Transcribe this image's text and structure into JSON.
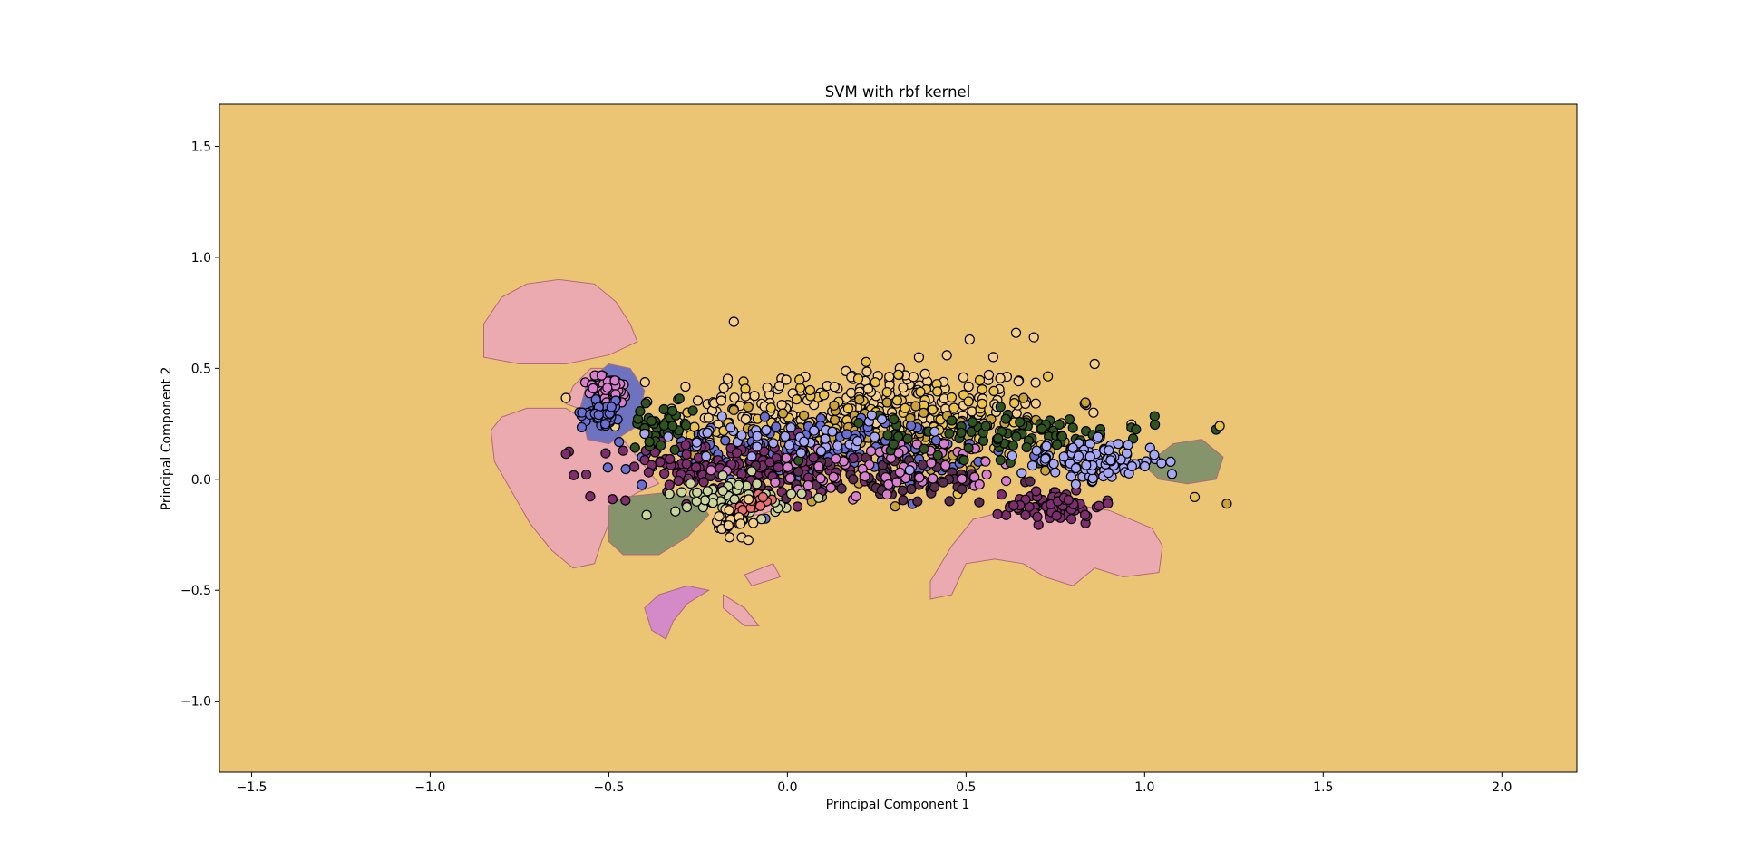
{
  "chart_data": {
    "type": "scatter",
    "title": "SVM with rbf kernel",
    "xlabel": "Principal Component 1",
    "ylabel": "Principal Component 2",
    "xlim": [
      -1.59,
      2.21
    ],
    "ylim": [
      -1.32,
      1.69
    ],
    "x_ticks": [
      -1.5,
      -1.0,
      -0.5,
      0.0,
      0.5,
      1.0,
      1.5,
      2.0
    ],
    "x_tick_labels": [
      "−1.5",
      "−1.0",
      "−0.5",
      "0.0",
      "0.5",
      "1.0",
      "1.5",
      "2.0"
    ],
    "y_ticks": [
      -1.0,
      -0.5,
      0.0,
      0.5,
      1.0,
      1.5
    ],
    "y_tick_labels": [
      "−1.0",
      "−0.5",
      "0.0",
      "0.5",
      "1.0",
      "1.5"
    ],
    "grid": false,
    "legend": false,
    "background_color": "#EBC574",
    "decision_regions": [
      {
        "color": "#EBAAB0",
        "polygon": [
          [
            -0.85,
            0.7
          ],
          [
            -0.8,
            0.82
          ],
          [
            -0.73,
            0.88
          ],
          [
            -0.64,
            0.9
          ],
          [
            -0.54,
            0.88
          ],
          [
            -0.48,
            0.8
          ],
          [
            -0.44,
            0.7
          ],
          [
            -0.42,
            0.62
          ],
          [
            -0.5,
            0.56
          ],
          [
            -0.62,
            0.52
          ],
          [
            -0.75,
            0.52
          ],
          [
            -0.85,
            0.55
          ]
        ]
      },
      {
        "color": "#EBAAB0",
        "polygon": [
          [
            -0.83,
            0.22
          ],
          [
            -0.8,
            0.28
          ],
          [
            -0.73,
            0.32
          ],
          [
            -0.62,
            0.32
          ],
          [
            -0.56,
            0.26
          ],
          [
            -0.46,
            0.18
          ],
          [
            -0.4,
            0.06
          ],
          [
            -0.36,
            -0.02
          ],
          [
            -0.42,
            -0.06
          ],
          [
            -0.48,
            -0.12
          ],
          [
            -0.52,
            -0.28
          ],
          [
            -0.54,
            -0.38
          ],
          [
            -0.6,
            -0.4
          ],
          [
            -0.66,
            -0.32
          ],
          [
            -0.72,
            -0.2
          ],
          [
            -0.77,
            -0.06
          ],
          [
            -0.82,
            0.08
          ]
        ]
      },
      {
        "color": "#EBAAB0",
        "polygon": [
          [
            -0.62,
            0.34
          ],
          [
            -0.6,
            0.42
          ],
          [
            -0.55,
            0.5
          ],
          [
            -0.48,
            0.5
          ],
          [
            -0.44,
            0.42
          ],
          [
            -0.48,
            0.34
          ],
          [
            -0.55,
            0.3
          ]
        ]
      },
      {
        "color": "#EBAAB0",
        "polygon": [
          [
            -0.14,
            -0.16
          ],
          [
            -0.08,
            -0.1
          ],
          [
            0.0,
            -0.08
          ],
          [
            0.0,
            -0.12
          ],
          [
            -0.08,
            -0.16
          ]
        ]
      },
      {
        "color": "#EBAAB0",
        "polygon": [
          [
            0.4,
            -0.46
          ],
          [
            0.46,
            -0.3
          ],
          [
            0.52,
            -0.18
          ],
          [
            0.62,
            -0.14
          ],
          [
            0.75,
            -0.1
          ],
          [
            0.9,
            -0.14
          ],
          [
            1.02,
            -0.22
          ],
          [
            1.05,
            -0.3
          ],
          [
            1.04,
            -0.42
          ],
          [
            0.94,
            -0.44
          ],
          [
            0.86,
            -0.4
          ],
          [
            0.8,
            -0.48
          ],
          [
            0.72,
            -0.44
          ],
          [
            0.66,
            -0.38
          ],
          [
            0.58,
            -0.36
          ],
          [
            0.5,
            -0.38
          ],
          [
            0.46,
            -0.52
          ],
          [
            0.4,
            -0.54
          ]
        ]
      },
      {
        "color": "#EBAAB0",
        "polygon": [
          [
            -0.12,
            -0.43
          ],
          [
            -0.04,
            -0.38
          ],
          [
            -0.02,
            -0.44
          ],
          [
            -0.1,
            -0.48
          ]
        ]
      },
      {
        "color": "#EBAAB0",
        "polygon": [
          [
            -0.18,
            -0.52
          ],
          [
            -0.12,
            -0.58
          ],
          [
            -0.08,
            -0.66
          ],
          [
            -0.12,
            -0.66
          ],
          [
            -0.18,
            -0.58
          ]
        ]
      },
      {
        "color": "#6E73C0",
        "polygon": [
          [
            -0.58,
            0.32
          ],
          [
            -0.56,
            0.44
          ],
          [
            -0.5,
            0.52
          ],
          [
            -0.44,
            0.5
          ],
          [
            -0.4,
            0.4
          ],
          [
            -0.42,
            0.24
          ],
          [
            -0.5,
            0.16
          ],
          [
            -0.56,
            0.18
          ]
        ]
      },
      {
        "color": "#85946A",
        "polygon": [
          [
            -0.5,
            -0.12
          ],
          [
            -0.46,
            -0.08
          ],
          [
            -0.34,
            -0.06
          ],
          [
            -0.26,
            -0.08
          ],
          [
            -0.22,
            -0.16
          ],
          [
            -0.28,
            -0.26
          ],
          [
            -0.36,
            -0.34
          ],
          [
            -0.46,
            -0.34
          ],
          [
            -0.5,
            -0.28
          ]
        ]
      },
      {
        "color": "#85946A",
        "polygon": [
          [
            1.0,
            0.06
          ],
          [
            1.08,
            0.16
          ],
          [
            1.16,
            0.18
          ],
          [
            1.22,
            0.1
          ],
          [
            1.2,
            0.0
          ],
          [
            1.12,
            -0.02
          ],
          [
            1.04,
            0.0
          ]
        ]
      },
      {
        "color": "#D48AC8",
        "polygon": [
          [
            -0.4,
            -0.58
          ],
          [
            -0.36,
            -0.52
          ],
          [
            -0.28,
            -0.48
          ],
          [
            -0.22,
            -0.5
          ],
          [
            -0.28,
            -0.56
          ],
          [
            -0.32,
            -0.64
          ],
          [
            -0.34,
            -0.72
          ],
          [
            -0.38,
            -0.68
          ]
        ]
      }
    ],
    "series_colors": [
      "#F5D08A",
      "#2F5420",
      "#6A6FD6",
      "#7E2E6E",
      "#D97FD0",
      "#ECC44A",
      "#A6A8F5",
      "#C9D59A",
      "#E86F72",
      "#5B2D4F",
      "#C9A33A"
    ],
    "clusters": [
      {
        "color": "#F5D08A",
        "center": [
          0.2,
          0.32
        ],
        "spread": [
          0.5,
          0.18
        ],
        "count": 260
      },
      {
        "color": "#ECC44A",
        "center": [
          0.25,
          0.25
        ],
        "spread": [
          0.45,
          0.2
        ],
        "count": 160
      },
      {
        "color": "#C9A33A",
        "center": [
          0.3,
          0.15
        ],
        "spread": [
          0.45,
          0.18
        ],
        "count": 120
      },
      {
        "color": "#6A6FD6",
        "center": [
          0.05,
          0.12
        ],
        "spread": [
          0.4,
          0.14
        ],
        "count": 150
      },
      {
        "color": "#7E2E6E",
        "center": [
          -0.15,
          0.05
        ],
        "spread": [
          0.35,
          0.12
        ],
        "count": 170
      },
      {
        "color": "#7E2E6E",
        "center": [
          0.75,
          -0.12
        ],
        "spread": [
          0.12,
          0.07
        ],
        "count": 70
      },
      {
        "color": "#5B2D4F",
        "center": [
          0.3,
          0.0
        ],
        "spread": [
          0.3,
          0.1
        ],
        "count": 80
      },
      {
        "color": "#D97FD0",
        "center": [
          -0.5,
          0.4
        ],
        "spread": [
          0.06,
          0.06
        ],
        "count": 60
      },
      {
        "color": "#D97FD0",
        "center": [
          0.3,
          0.05
        ],
        "spread": [
          0.35,
          0.12
        ],
        "count": 70
      },
      {
        "color": "#6A6FD6",
        "center": [
          -0.52,
          0.3
        ],
        "spread": [
          0.05,
          0.05
        ],
        "count": 50
      },
      {
        "color": "#2F5420",
        "center": [
          0.65,
          0.2
        ],
        "spread": [
          0.35,
          0.1
        ],
        "count": 90
      },
      {
        "color": "#2F5420",
        "center": [
          -0.35,
          0.25
        ],
        "spread": [
          0.08,
          0.08
        ],
        "count": 40
      },
      {
        "color": "#A6A8F5",
        "center": [
          0.85,
          0.08
        ],
        "spread": [
          0.18,
          0.08
        ],
        "count": 110
      },
      {
        "color": "#A6A8F5",
        "center": [
          0.0,
          0.2
        ],
        "spread": [
          0.3,
          0.1
        ],
        "count": 50
      },
      {
        "color": "#C9D59A",
        "center": [
          -0.15,
          -0.08
        ],
        "spread": [
          0.15,
          0.08
        ],
        "count": 60
      },
      {
        "color": "#E86F72",
        "center": [
          -0.1,
          -0.12
        ],
        "spread": [
          0.06,
          0.04
        ],
        "count": 20
      },
      {
        "color": "#F5D08A",
        "center": [
          -0.15,
          -0.2
        ],
        "spread": [
          0.05,
          0.08
        ],
        "count": 30
      }
    ],
    "extra_points": [
      {
        "color": "#ECC44A",
        "x": 1.21,
        "y": 0.24
      },
      {
        "color": "#C9A33A",
        "x": 1.23,
        "y": -0.11
      },
      {
        "color": "#ECC44A",
        "x": 1.14,
        "y": -0.08
      },
      {
        "color": "#F5D08A",
        "x": 0.69,
        "y": 0.64
      },
      {
        "color": "#F5D08A",
        "x": 0.64,
        "y": 0.66
      },
      {
        "color": "#F5D08A",
        "x": 0.86,
        "y": 0.52
      },
      {
        "color": "#F5D08A",
        "x": -0.15,
        "y": 0.71
      },
      {
        "color": "#F5D08A",
        "x": 0.51,
        "y": 0.63
      }
    ]
  }
}
